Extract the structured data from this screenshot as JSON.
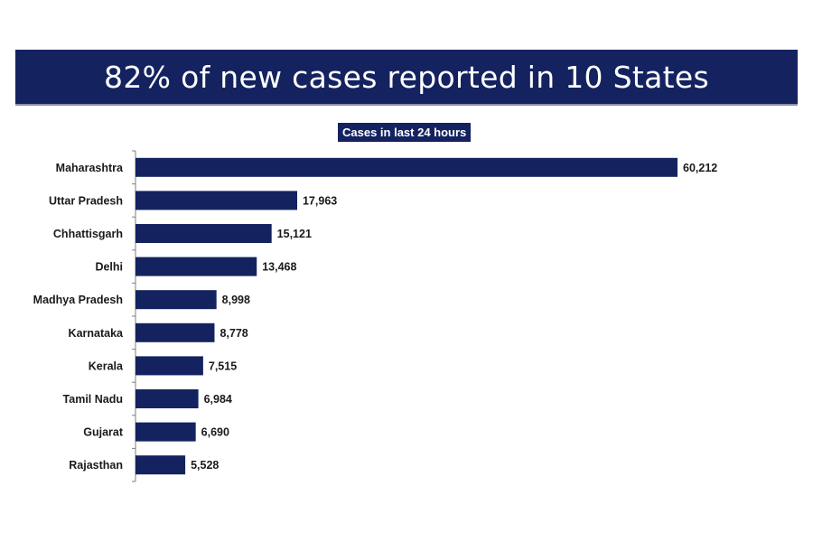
{
  "colors": {
    "accent": "#14235f",
    "bar": "#14235f"
  },
  "chart_data": {
    "type": "bar",
    "orientation": "horizontal",
    "title": "82% of new cases reported in 10 States",
    "subtitle": "Cases in last 24 hours",
    "categories": [
      "Maharashtra",
      "Uttar Pradesh",
      "Chhattisgarh",
      "Delhi",
      "Madhya Pradesh",
      "Karnataka",
      "Kerala",
      "Tamil Nadu",
      "Gujarat",
      "Rajasthan"
    ],
    "values": [
      60212,
      17963,
      15121,
      13468,
      8998,
      8778,
      7515,
      6984,
      6690,
      5528
    ],
    "value_labels": [
      "60,212",
      "17,963",
      "15,121",
      "13,468",
      "8,998",
      "8,778",
      "7,515",
      "6,984",
      "6,690",
      "5,528"
    ],
    "xlim": [
      0,
      60212
    ],
    "grid": false,
    "legend": "none"
  }
}
